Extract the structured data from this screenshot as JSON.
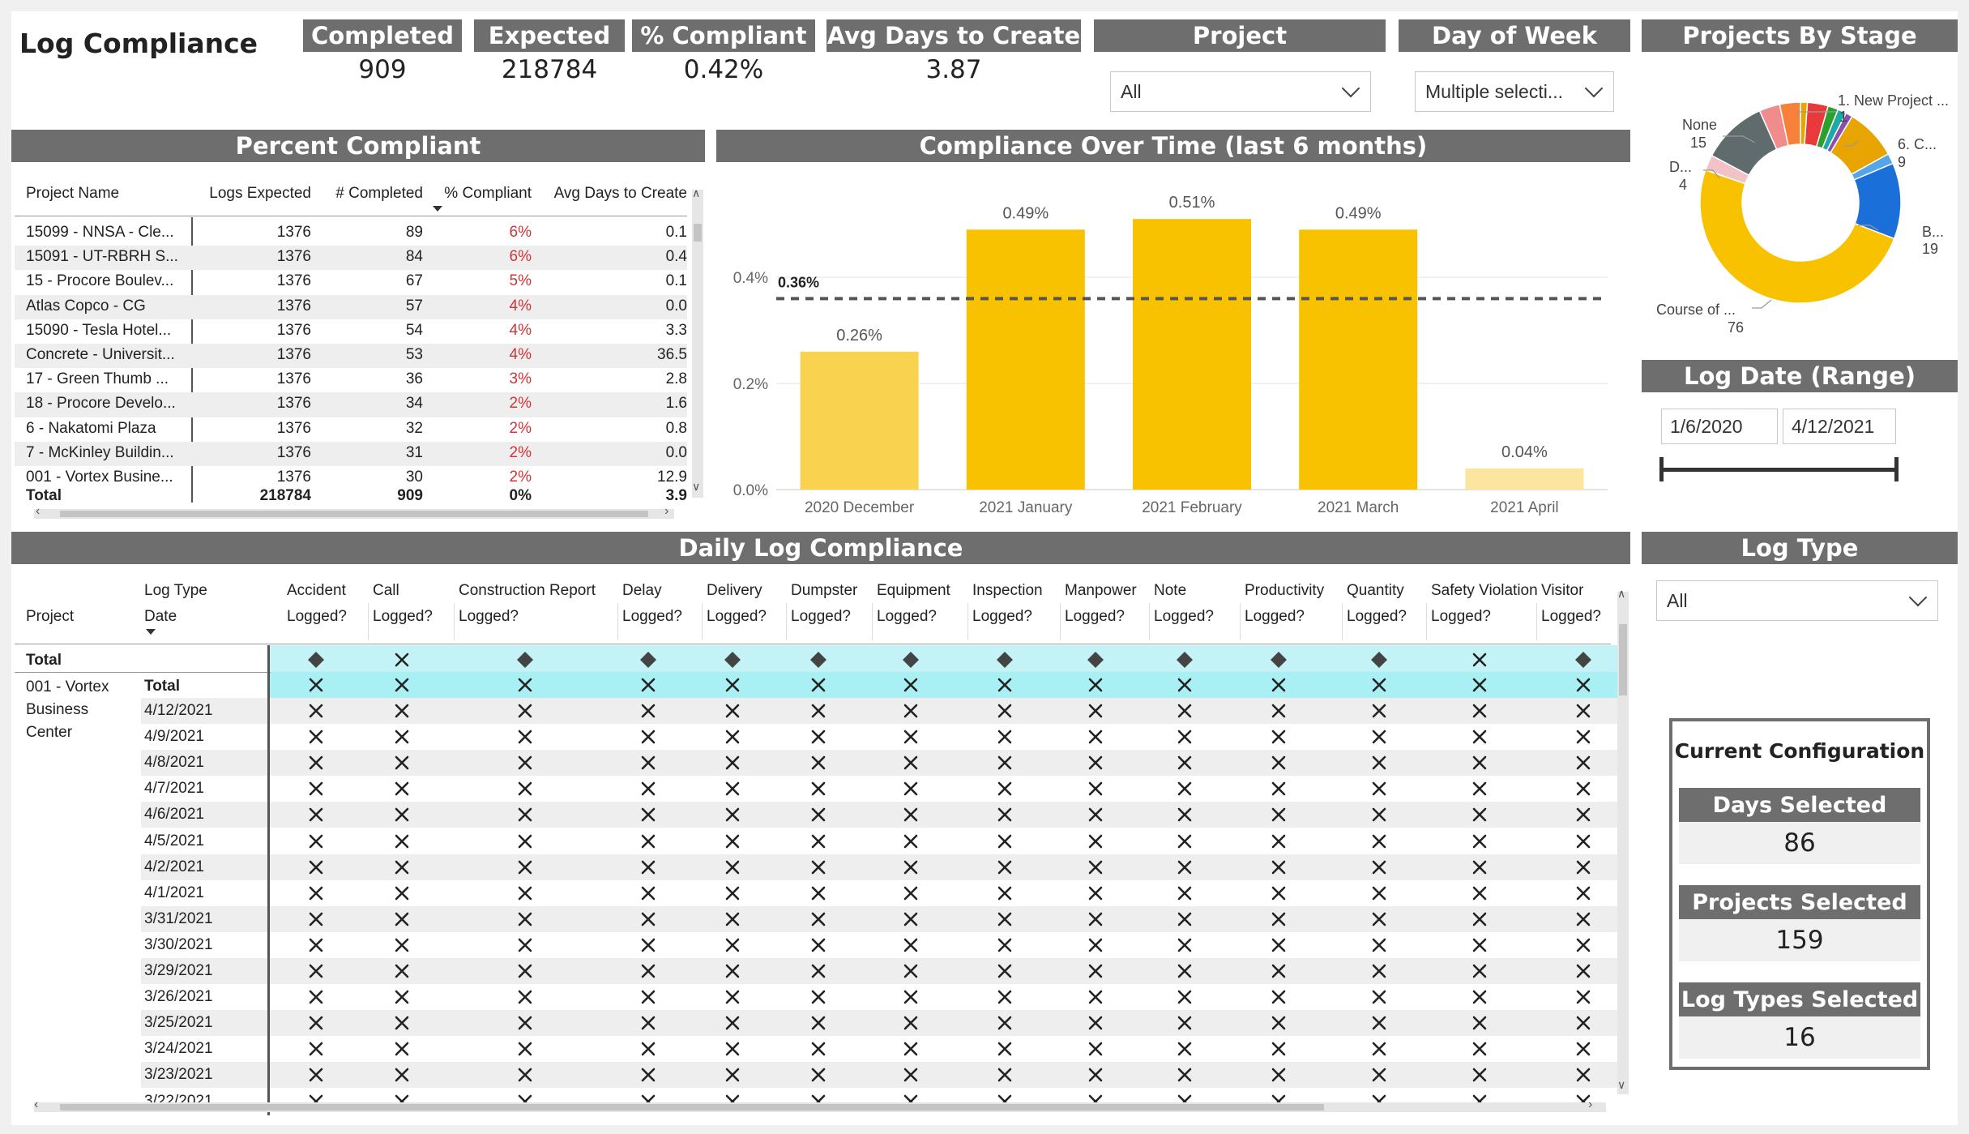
{
  "page_title": "Log Compliance",
  "kpis": [
    {
      "label": "Completed",
      "value": "909"
    },
    {
      "label": "Expected",
      "value": "218784"
    },
    {
      "label": "% Compliant",
      "value": "0.42%"
    },
    {
      "label": "Avg Days to Create",
      "value": "3.87"
    }
  ],
  "filters": {
    "project": {
      "label": "Project",
      "value": "All"
    },
    "day_of_week": {
      "label": "Day of Week",
      "value": "Multiple selecti..."
    },
    "log_type": {
      "label": "Log Type",
      "value": "All"
    },
    "log_date": {
      "label": "Log Date (Range)",
      "start": "1/6/2020",
      "end": "4/12/2021"
    }
  },
  "percent_compliant": {
    "title": "Percent Compliant",
    "columns": [
      "Project Name",
      "Logs Expected",
      "# Completed",
      "% Compliant",
      "Avg Days to Create"
    ],
    "rows": [
      [
        "15099 - NNSA - Cle...",
        "1376",
        "89",
        "6%",
        "0.1"
      ],
      [
        "15091 - UT-RBRH S...",
        "1376",
        "84",
        "6%",
        "0.4"
      ],
      [
        "15 - Procore Boulev...",
        "1376",
        "67",
        "5%",
        "0.1"
      ],
      [
        "Atlas Copco - CG",
        "1376",
        "57",
        "4%",
        "0.0"
      ],
      [
        "15090 - Tesla Hotel...",
        "1376",
        "54",
        "4%",
        "3.3"
      ],
      [
        "Concrete - Universit...",
        "1376",
        "53",
        "4%",
        "36.5"
      ],
      [
        "17 - Green Thumb ...",
        "1376",
        "36",
        "3%",
        "2.8"
      ],
      [
        "18 - Procore Develo...",
        "1376",
        "34",
        "2%",
        "1.6"
      ],
      [
        "6 - Nakatomi Plaza",
        "1376",
        "32",
        "2%",
        "0.8"
      ],
      [
        "7 - McKinley Buildin...",
        "1376",
        "31",
        "2%",
        "0.0"
      ],
      [
        "001 - Vortex Busine...",
        "1376",
        "30",
        "2%",
        "12.9"
      ]
    ],
    "total": [
      "Total",
      "218784",
      "909",
      "0%",
      "3.9"
    ]
  },
  "compliance_chart": {
    "title": "Compliance Over Time (last 6 months)",
    "reference_label": "0.36%"
  },
  "chart_data": {
    "type": "bar",
    "title": "Compliance Over Time (last 6 months)",
    "categories": [
      "2020 December",
      "2021 January",
      "2021 February",
      "2021 March",
      "2021 April"
    ],
    "values": [
      0.26,
      0.49,
      0.51,
      0.49,
      0.04
    ],
    "value_labels": [
      "0.26%",
      "0.49%",
      "0.51%",
      "0.49%",
      "0.04%"
    ],
    "ylim": [
      0,
      0.55
    ],
    "yticks": [
      0,
      0.2,
      0.4
    ],
    "ytick_labels": [
      "0.0%",
      "0.2%",
      "0.4%"
    ],
    "reference_line": 0.36,
    "colors": {
      "bar": "#f8c200",
      "bar_light_1": "#f9d24f",
      "bar_light_2": "#fbe5a0",
      "reference": "#555555"
    }
  },
  "projects_by_stage": {
    "title": "Projects By Stage",
    "labels": [
      {
        "name": "1. New Project ...",
        "value": "1"
      },
      {
        "name": "6. C...",
        "value": "9"
      },
      {
        "name": "B...",
        "value": "19"
      },
      {
        "name": "Course of ...",
        "value": "76"
      },
      {
        "name": "D...",
        "value": "4"
      },
      {
        "name": "None",
        "value": "15"
      }
    ],
    "colors": {
      "course": "#f8c200",
      "blue": "#1a6fd8",
      "dark": "#5f6b6d",
      "pink": "#f08c8c",
      "orange": "#f7813a",
      "red": "#e83a3a",
      "green": "#2ca02c",
      "teal": "#1fa8a8",
      "purple": "#8c4fb0",
      "gold": "#e8a400",
      "lightblue": "#54a6e8",
      "lightpink": "#f2c2c8"
    }
  },
  "daily_log": {
    "title": "Daily Log Compliance",
    "row_header_project": "Project",
    "row_header_type": "Log Type",
    "row_header_date": "Date",
    "logged_label": "Logged?",
    "log_types": [
      "Accident",
      "Call",
      "Construction Report",
      "Delay",
      "Delivery",
      "Dumpster",
      "Equipment",
      "Inspection",
      "Manpower",
      "Note",
      "Productivity",
      "Quantity",
      "Safety Violation",
      "Visitor"
    ],
    "total_label": "Total",
    "total_marks": [
      "diamond",
      "x",
      "diamond",
      "diamond",
      "diamond",
      "diamond",
      "diamond",
      "diamond",
      "diamond",
      "diamond",
      "diamond",
      "diamond",
      "x",
      "diamond"
    ],
    "project_name": "001 - Vortex Business Center",
    "project_total_label": "Total",
    "dates": [
      "4/12/2021",
      "4/9/2021",
      "4/8/2021",
      "4/7/2021",
      "4/6/2021",
      "4/5/2021",
      "4/2/2021",
      "4/1/2021",
      "3/31/2021",
      "3/30/2021",
      "3/29/2021",
      "3/26/2021",
      "3/25/2021",
      "3/24/2021",
      "3/23/2021",
      "3/22/2021"
    ]
  },
  "current_config": {
    "title": "Current Configuration",
    "items": [
      {
        "label": "Days Selected",
        "value": "86"
      },
      {
        "label": "Projects Selected",
        "value": "159"
      },
      {
        "label": "Log Types Selected",
        "value": "16"
      }
    ]
  }
}
